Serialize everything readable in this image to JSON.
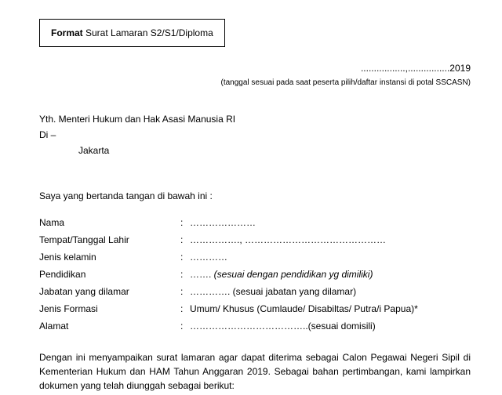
{
  "format_box": {
    "bold_text": "Format",
    "normal_text": " Surat Lamaran S2/S1/Diploma"
  },
  "date_line": ".................,................2019",
  "date_note": "(tanggal sesuai pada saat peserta pilih/daftar instansi di potal SSCASN)",
  "recipient": "Yth. Menteri Hukum dan Hak Asasi Manusia RI",
  "di_line": "Di –",
  "city": "Jakarta",
  "intro": "Saya yang bertanda tangan di bawah ini :",
  "fields": {
    "nama": {
      "label": "Nama",
      "value": "…………………"
    },
    "ttl": {
      "label": "Tempat/Tanggal Lahir",
      "value": "……………., ………………………………………"
    },
    "jk": {
      "label": "Jenis kelamin",
      "value": "…………"
    },
    "pendidikan": {
      "label": "Pendidikan",
      "value_prefix": "……. ",
      "value_italic": "(sesuai dengan pendidikan yg dimiliki)"
    },
    "jabatan": {
      "label": "Jabatan yang dilamar",
      "value": "…………. (sesuai jabatan yang dilamar)"
    },
    "formasi": {
      "label": "Jenis Formasi",
      "value": "Umum/ Khusus (Cumlaude/ Disabiltas/ Putra/i Papua)*"
    },
    "alamat": {
      "label": "Alamat",
      "value": "………………………………..(sesuai domisili)"
    }
  },
  "closing": "Dengan ini menyampaikan surat lamaran agar dapat diterima sebagai Calon Pegawai Negeri Sipil di Kementerian Hukum dan HAM Tahun Anggaran 2019. Sebagai bahan pertimbangan, kami lampirkan dokumen yang telah diunggah sebagai berikut:"
}
